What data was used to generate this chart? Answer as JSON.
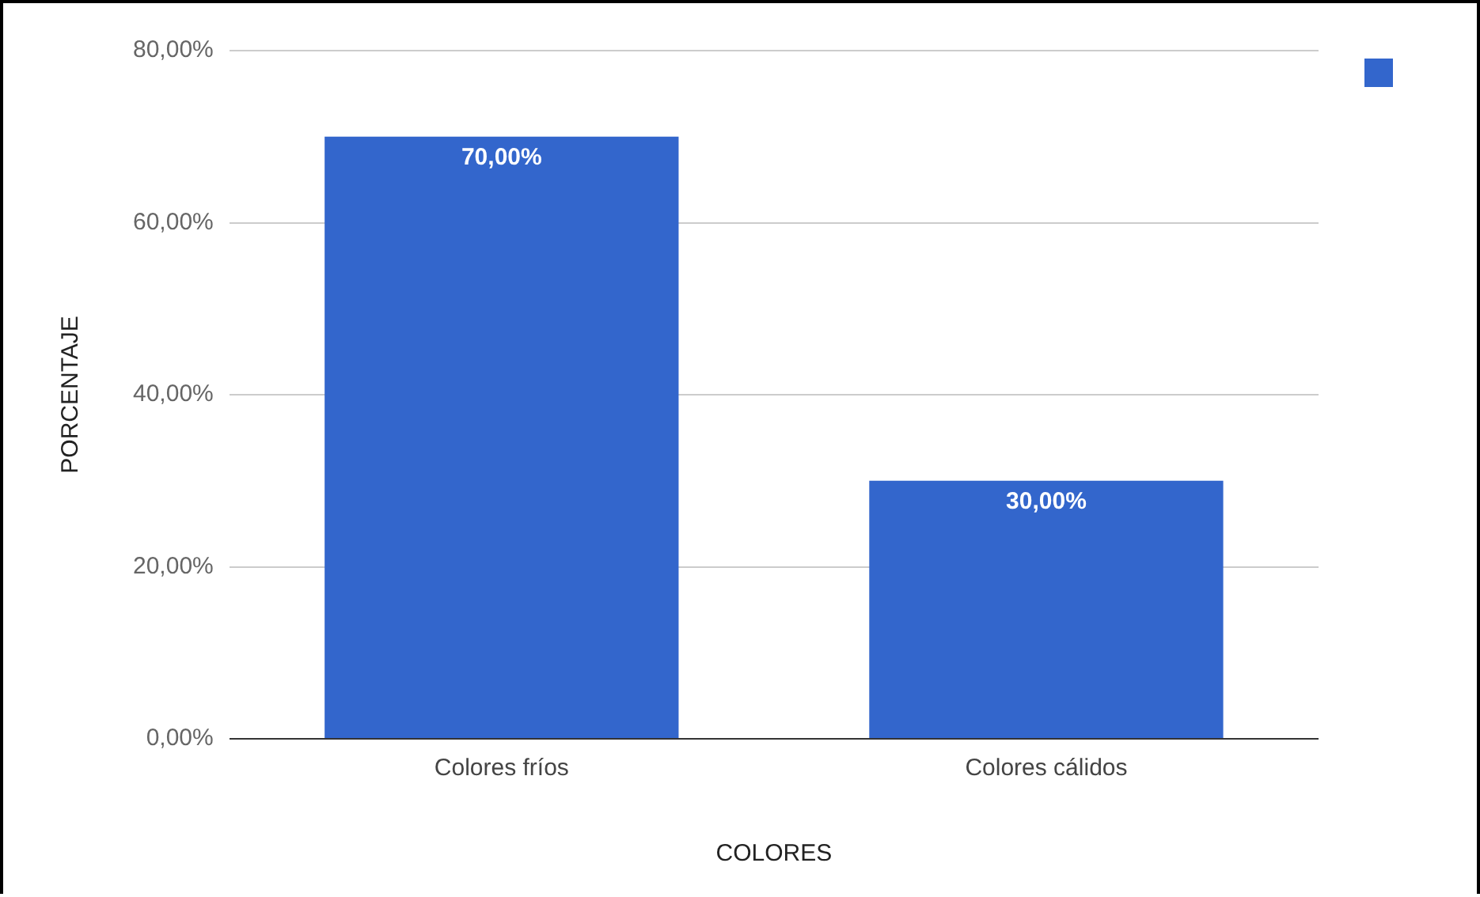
{
  "chart_data": {
    "type": "bar",
    "xlabel": "COLORES",
    "ylabel": "PORCENTAJE",
    "categories": [
      "Colores fríos",
      "Colores cálidos"
    ],
    "series": [
      {
        "color": "#3366cc",
        "values": [
          70,
          30
        ],
        "value_labels": [
          "70,00%",
          "30,00%"
        ]
      }
    ],
    "ylim": [
      0,
      80
    ],
    "yticks": [
      {
        "value": 0,
        "label": "0,00%"
      },
      {
        "value": 20,
        "label": "20,00%"
      },
      {
        "value": 40,
        "label": "40,00%"
      },
      {
        "value": 60,
        "label": "60,00%"
      },
      {
        "value": 80,
        "label": "80,00%"
      }
    ],
    "grid": "y"
  }
}
